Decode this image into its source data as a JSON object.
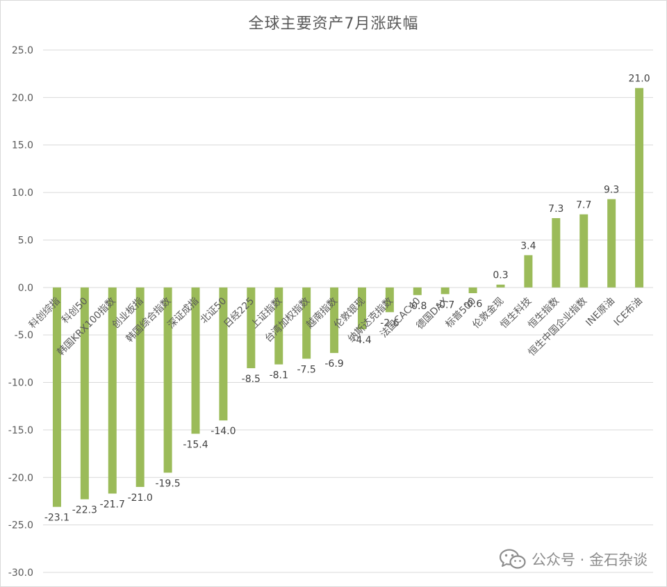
{
  "colors": {
    "bar": "#9bbb59",
    "grid": "#d9d9d9",
    "axis_text": "#595959",
    "label_text": "#404040"
  },
  "chart_data": {
    "type": "bar",
    "title": "全球主要资产7月涨跌幅",
    "xlabel": "",
    "ylabel": "",
    "ylim": [
      -30,
      25
    ],
    "yticks": [
      "25.0",
      "20.0",
      "15.0",
      "10.0",
      "5.0",
      "0.0",
      "-5.0",
      "-10.0",
      "-15.0",
      "-20.0",
      "-25.0",
      "-30.0"
    ],
    "grid": true,
    "legend": "none",
    "categories": [
      "科创综指",
      "科创50",
      "韩国KRX100指数",
      "创业板指",
      "韩国综合指数",
      "深证成指",
      "北证50",
      "日经225",
      "上证指数",
      "台湾加权指数",
      "越南指数",
      "伦敦银现",
      "纳斯达克指数",
      "法国CAC40",
      "德国DAX",
      "标普500",
      "伦敦金现",
      "恒生科技",
      "恒生指数",
      "恒生中国企业指数",
      "INE原油",
      "ICE布油"
    ],
    "values": [
      -23.1,
      -22.3,
      -21.7,
      -21.0,
      -19.5,
      -15.4,
      -14.0,
      -8.5,
      -8.1,
      -7.5,
      -6.9,
      -4.4,
      -2.6,
      -0.8,
      -0.7,
      -0.6,
      0.3,
      3.4,
      7.3,
      7.7,
      9.3,
      21.0
    ],
    "value_labels": [
      "-23.1",
      "-22.3",
      "-21.7",
      "-21.0",
      "-19.5",
      "-15.4",
      "-14.0",
      "-8.5",
      "-8.1",
      "-7.5",
      "-6.9",
      "-4.4",
      "-2.6",
      "-0.8",
      "-0.7",
      "-0.6",
      "0.3",
      "3.4",
      "7.3",
      "7.7",
      "9.3",
      "21.0"
    ]
  },
  "watermark": {
    "text": "公众号 · 金石杂谈",
    "icon": "wechat-icon"
  }
}
